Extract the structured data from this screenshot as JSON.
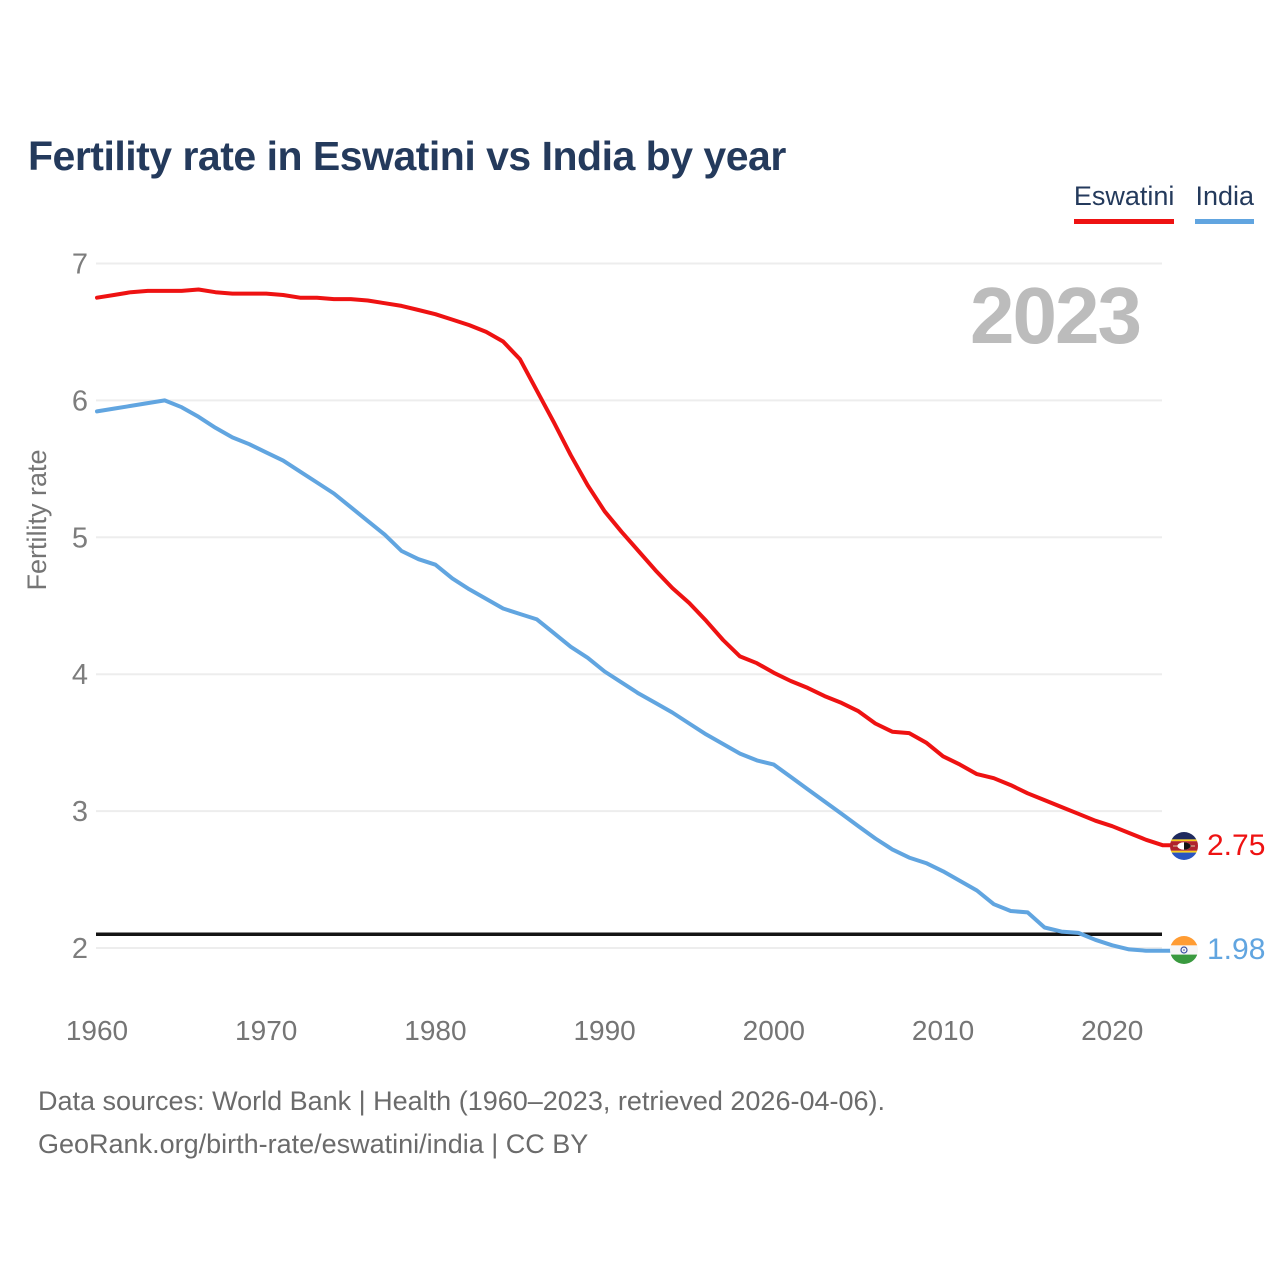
{
  "title": "Fertility rate in Eswatini vs India by year",
  "watermark": "2023",
  "legend": [
    {
      "label": "Eswatini",
      "color": "#ee1212"
    },
    {
      "label": "India",
      "color": "#61a5e0"
    }
  ],
  "y_axis": {
    "label": "Fertility rate",
    "ticks": [
      "7",
      "6",
      "5",
      "4",
      "3",
      "2"
    ]
  },
  "x_axis": {
    "ticks": [
      "1960",
      "1970",
      "1980",
      "1990",
      "2000",
      "2010",
      "2020"
    ]
  },
  "reference_line": {
    "value": 2.1,
    "color": "#141414"
  },
  "end_labels": [
    {
      "series": "Eswatini",
      "value": "2.75",
      "color": "#ee1212",
      "flag": "eswatini-flag"
    },
    {
      "series": "India",
      "value": "1.98",
      "color": "#61a5e0",
      "flag": "india-flag"
    }
  ],
  "footer": {
    "line1": "Data sources: World Bank | Health (1960–2023, retrieved 2026-04-06).",
    "line2": "GeoRank.org/birth-rate/eswatini/india | CC BY"
  },
  "chart_data": {
    "type": "line",
    "title": "Fertility rate in Eswatini vs India by year",
    "xlabel": "",
    "ylabel": "Fertility rate",
    "ylim": [
      2,
      7
    ],
    "xlim": [
      1960,
      2023
    ],
    "grid": "horizontal",
    "legend_position": "top-right",
    "x": [
      1960,
      1961,
      1962,
      1963,
      1964,
      1965,
      1966,
      1967,
      1968,
      1969,
      1970,
      1971,
      1972,
      1973,
      1974,
      1975,
      1976,
      1977,
      1978,
      1979,
      1980,
      1981,
      1982,
      1983,
      1984,
      1985,
      1986,
      1987,
      1988,
      1989,
      1990,
      1991,
      1992,
      1993,
      1994,
      1995,
      1996,
      1997,
      1998,
      1999,
      2000,
      2001,
      2002,
      2003,
      2004,
      2005,
      2006,
      2007,
      2008,
      2009,
      2010,
      2011,
      2012,
      2013,
      2014,
      2015,
      2016,
      2017,
      2018,
      2019,
      2020,
      2021,
      2022,
      2023
    ],
    "series": [
      {
        "name": "Eswatini",
        "color": "#ee1212",
        "values": [
          6.75,
          6.77,
          6.79,
          6.8,
          6.8,
          6.8,
          6.81,
          6.79,
          6.78,
          6.78,
          6.78,
          6.77,
          6.75,
          6.75,
          6.74,
          6.74,
          6.73,
          6.71,
          6.69,
          6.66,
          6.63,
          6.59,
          6.55,
          6.5,
          6.43,
          6.3,
          6.07,
          5.84,
          5.6,
          5.38,
          5.19,
          5.04,
          4.9,
          4.76,
          4.63,
          4.52,
          4.39,
          4.25,
          4.13,
          4.08,
          4.01,
          3.95,
          3.9,
          3.84,
          3.79,
          3.73,
          3.64,
          3.58,
          3.57,
          3.5,
          3.4,
          3.34,
          3.27,
          3.24,
          3.19,
          3.13,
          3.08,
          3.03,
          2.98,
          2.93,
          2.89,
          2.84,
          2.79,
          2.75
        ]
      },
      {
        "name": "India",
        "color": "#61a5e0",
        "values": [
          5.92,
          5.94,
          5.96,
          5.98,
          6.0,
          5.95,
          5.88,
          5.8,
          5.73,
          5.68,
          5.62,
          5.56,
          5.48,
          5.4,
          5.32,
          5.22,
          5.12,
          5.02,
          4.9,
          4.84,
          4.8,
          4.7,
          4.62,
          4.55,
          4.48,
          4.44,
          4.4,
          4.3,
          4.2,
          4.12,
          4.02,
          3.94,
          3.86,
          3.79,
          3.72,
          3.64,
          3.56,
          3.49,
          3.42,
          3.37,
          3.34,
          3.25,
          3.16,
          3.07,
          2.98,
          2.89,
          2.8,
          2.72,
          2.66,
          2.62,
          2.56,
          2.49,
          2.42,
          2.32,
          2.27,
          2.26,
          2.15,
          2.12,
          2.11,
          2.06,
          2.02,
          1.99,
          1.98,
          1.98
        ]
      }
    ],
    "reference_line_y": 2.1
  }
}
